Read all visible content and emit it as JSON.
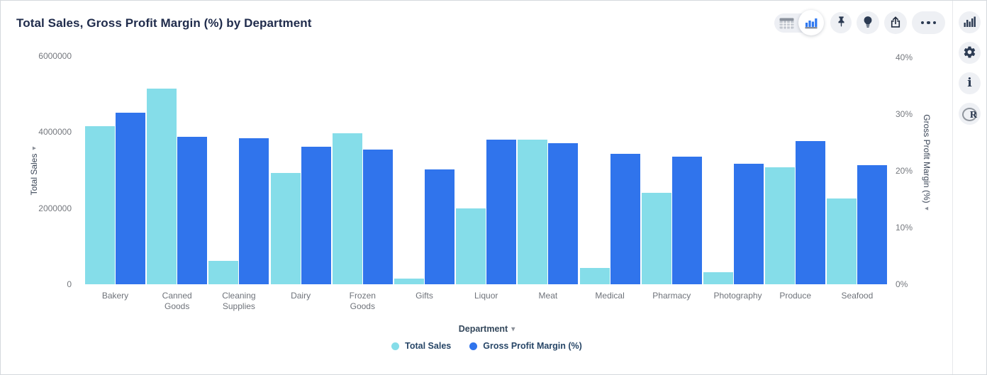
{
  "header": {
    "title": "Total Sales, Gross Profit Margin (%) by Department"
  },
  "toolbar": {
    "view_toggle": {
      "options": [
        "table-view",
        "chart-view"
      ],
      "selected": "chart-view"
    },
    "buttons": [
      "pin",
      "insights-bulb",
      "export",
      "more-options"
    ]
  },
  "side_panel": {
    "buttons": [
      "chart-type",
      "settings",
      "info",
      "r-script"
    ]
  },
  "chart_data": {
    "type": "bar",
    "title": "Total Sales, Gross Profit Margin (%) by Department",
    "categories": [
      "Bakery",
      "Canned Goods",
      "Cleaning Supplies",
      "Dairy",
      "Frozen Goods",
      "Gifts",
      "Liquor",
      "Meat",
      "Medical",
      "Pharmacy",
      "Photography",
      "Produce",
      "Seafood"
    ],
    "series": [
      {
        "name": "Total Sales",
        "axis": "left",
        "color": "#85dde9",
        "values": [
          4150000,
          5150000,
          620000,
          2920000,
          3970000,
          150000,
          2000000,
          3810000,
          420000,
          2410000,
          310000,
          3070000,
          2260000
        ]
      },
      {
        "name": "Gross Profit Margin (%)",
        "axis": "right",
        "color": "#3074ec",
        "values": [
          30.2,
          26.0,
          25.8,
          24.3,
          23.7,
          20.3,
          25.5,
          24.9,
          23.0,
          22.5,
          21.3,
          25.3,
          21.0
        ]
      }
    ],
    "xlabel": "Department",
    "left_axis": {
      "label": "Total Sales",
      "ylim": [
        0,
        6000000
      ],
      "ticks": [
        {
          "label": "0",
          "value": 0
        },
        {
          "label": "2000000",
          "value": 2000000
        },
        {
          "label": "4000000",
          "value": 4000000
        },
        {
          "label": "6000000",
          "value": 6000000
        }
      ]
    },
    "right_axis": {
      "label": "Gross Profit Margin (%)",
      "ylim": [
        0,
        40
      ],
      "ticks": [
        {
          "label": "0%",
          "value": 0
        },
        {
          "label": "10%",
          "value": 10
        },
        {
          "label": "20%",
          "value": 20
        },
        {
          "label": "30%",
          "value": 30
        },
        {
          "label": "40%",
          "value": 40
        }
      ]
    },
    "legend_position": "bottom",
    "grid": false
  },
  "glyphs": {
    "sort_arrow": "▾",
    "caret_down": "▾"
  },
  "colors": {
    "total_sales_bar": "#85dde9",
    "gross_profit_bar": "#3074ec",
    "title_text": "#202c4c",
    "tick_text": "#75787e",
    "icon": "#2b3a52",
    "icon_button_bg": "#eef0f4"
  }
}
